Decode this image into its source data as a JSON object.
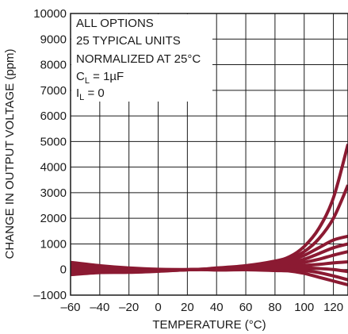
{
  "chart_data": {
    "type": "line",
    "xlabel": "TEMPERATURE (°C)",
    "ylabel": "CHANGE IN OUTPUT VOLTAGE (ppm)",
    "xlim": [
      -60,
      130
    ],
    "ylim": [
      -1000,
      10000
    ],
    "grid": true,
    "x_ticks": [
      -60,
      -40,
      -20,
      0,
      20,
      40,
      60,
      80,
      100,
      120
    ],
    "y_ticks": [
      -1000,
      0,
      1000,
      2000,
      3000,
      4000,
      5000,
      6000,
      7000,
      8000,
      9000,
      10000
    ],
    "x_tick_labels": [
      "–60",
      "–40",
      "–20",
      "0",
      "20",
      "40",
      "60",
      "80",
      "100",
      "120"
    ],
    "y_tick_labels": [
      "–1000",
      "0",
      "1000",
      "2000",
      "3000",
      "4000",
      "5000",
      "6000",
      "7000",
      "8000",
      "9000",
      "10000"
    ],
    "annotation": {
      "line1": "ALL OPTIONS",
      "line2": "25 TYPICAL UNITS",
      "line3": "NORMALIZED AT 25°C",
      "cl_symbol": "C",
      "cl_sub": "L",
      "cl_value": " = 1µF",
      "il_symbol": "I",
      "il_sub": "L",
      "il_value": " = 0"
    },
    "series_color": "#8b1a32",
    "x": [
      -60,
      -40,
      -20,
      0,
      25,
      40,
      60,
      80,
      90,
      100,
      110,
      120,
      130
    ],
    "series": [
      {
        "values": [
          280,
          150,
          60,
          10,
          0,
          60,
          150,
          330,
          500,
          900,
          1600,
          2800,
          4900
        ]
      },
      {
        "values": [
          220,
          120,
          40,
          0,
          0,
          50,
          130,
          280,
          420,
          700,
          1200,
          2000,
          3300
        ]
      },
      {
        "values": [
          160,
          90,
          20,
          -10,
          0,
          40,
          110,
          240,
          350,
          550,
          850,
          1150,
          1300
        ]
      },
      {
        "values": [
          100,
          60,
          0,
          -20,
          0,
          30,
          90,
          190,
          270,
          400,
          620,
          850,
          1000
        ]
      },
      {
        "values": [
          40,
          20,
          -20,
          -30,
          0,
          20,
          70,
          150,
          200,
          280,
          400,
          560,
          700
        ]
      },
      {
        "values": [
          -20,
          -10,
          -40,
          -40,
          0,
          10,
          50,
          100,
          130,
          160,
          200,
          260,
          300
        ]
      },
      {
        "values": [
          -80,
          -40,
          -60,
          -50,
          0,
          0,
          30,
          50,
          60,
          60,
          40,
          0,
          -80
        ]
      },
      {
        "values": [
          -140,
          -80,
          -90,
          -60,
          0,
          -10,
          10,
          10,
          0,
          -40,
          -120,
          -250,
          -400
        ]
      },
      {
        "values": [
          -200,
          -120,
          -110,
          -70,
          0,
          -20,
          -10,
          -40,
          -60,
          -150,
          -300,
          -450,
          -600
        ]
      }
    ]
  }
}
